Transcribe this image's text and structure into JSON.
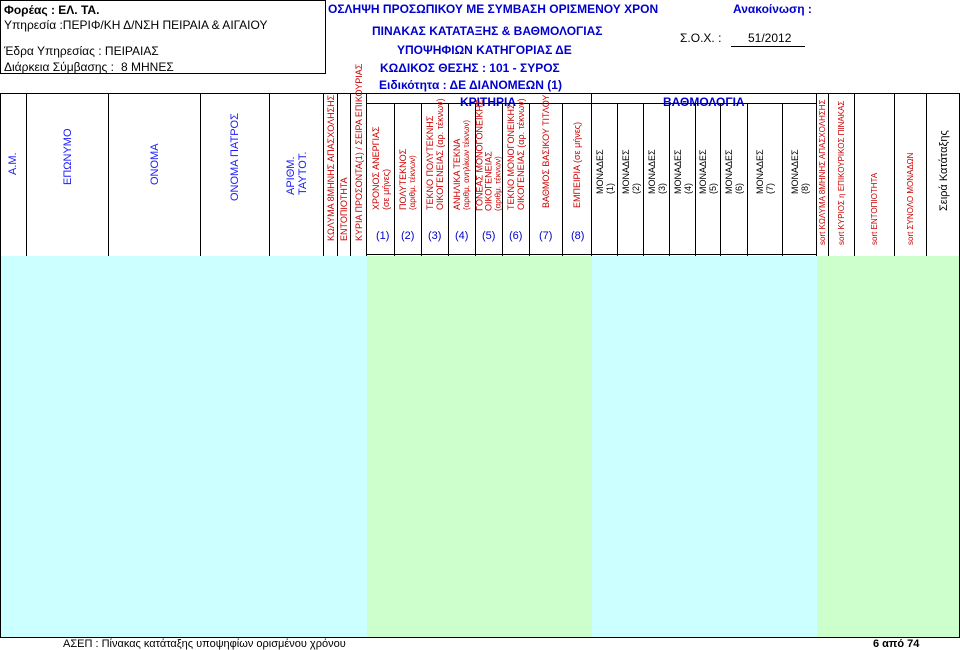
{
  "header": {
    "agency_line": "Φορέας : ΕΛ. ΤΑ.",
    "service_line": "Υπηρεσία :ΠΕΡΙΦ/ΚΗ Δ/ΝΣΗ ΠΕΙΡΑΙΑ & ΑΙΓΑΙΟΥ",
    "seat_line": "Έδρα Υπηρεσίας : ΠΕΙΡΑΙΑΣ",
    "duration_label": "Διάρκεια Σύμβασης :",
    "duration_value": "8 ΜΗΝΕΣ",
    "title_line1": "ΟΣΛΗΨΗ ΠΡΟΣΩΠΙΚΟΥ ΜΕ ΣΥΜΒΑΣΗ ΟΡΙΣΜΕΝΟΥ ΧΡΟΝ",
    "title_line2": "ΠΙΝΑΚΑΣ ΚΑΤΑΤΑΞΗΣ & ΒΑΘΜΟΛΟΓΙΑΣ",
    "title_line3": "ΥΠΟΨΗΦΙΩΝ ΚΑΤΗΓΟΡΙΑΣ ΔΕ",
    "title_line4": "ΚΩΔΙΚΟΣ ΘΕΣΗΣ : 101 - ΣΥΡΟΣ",
    "title_line5": "Ειδικότητα : ΔΕ ΔΙΑΝΟΜΕΩΝ (1)",
    "announcement_label": "Ανακοίνωση :",
    "sox_label": "Σ.Ο.Χ. :",
    "sox_value": "51/2012",
    "criteria_label": "ΚΡΙΤΗΡΙΑ",
    "scoring_label": "ΒΑΘΜΟΛΟΓΙΑ"
  },
  "columns": {
    "am": "Α.Μ.",
    "surname": "ΕΠΩΝΥΜΟ",
    "name": "ΟΝΟΜΑ",
    "father": "ΟΝΟΜΑ ΠΑΤΡΟΣ",
    "id1": "ΑΡΙΘΜ.",
    "id2": "ΤΑΥΤΟΤ.",
    "block": "ΚΩΛΥΜΑ 8ΜΗΝΗΣ ΑΠΑΣΧΟΛΗΣΗΣ",
    "locality": "ΕΝΤΟΠΙΟΤΗΤΑ",
    "main_qual": "ΚΥΡΙΑ ΠΡΟΣΟΝΤΑ(1) / ΣΕΙΡΑ ΕΠΙΚΟΥΡΙΑΣ",
    "c1a": "ΧΡΟΝΟΣ ΑΝΕΡΓΙΑΣ",
    "c1b": "(σε μήνες)",
    "c2a": "ΠΟΛΥΤΕΚΝΟΣ",
    "c2b": "(αριθμ. τέκνων)",
    "c3a": "ΤΕΚΝΟ ΠΟΛΥΤΕΚΝΗΣ",
    "c3b": "ΟΙΚΟΓΕΝΕΙΑΣ  (αρ. τέκνων)",
    "c4a": "ΑΝΗΛΙΚΑ ΤΕΚΝΑ",
    "c4b": "(αριθμ. ανηλίκων τέκνων)",
    "c5a": "ΓΟΝΕΑΣ ΜΟΝΟΓΟΝΕΙΚΗΣ",
    "c5b": "ΟΙΚΟΓΕΝΕΙΑΣ",
    "c5c": "(αριθμ. τέκνων)",
    "c6a": "ΤΕΚΝΟ ΜΟΝΟΓΟΝΕΙΚΗΣ",
    "c6b": "ΟΙΚΟΓΕΝΕΙΑΣ  (αρ. τέκνων)",
    "c7": "ΒΑΘΜΟΣ ΒΑΣΙΚΟΥ ΤΙΤΛΟΥ",
    "c8": "ΕΜΠΕΙΡΙΑ (σε μήνες)",
    "n1": "(1)",
    "n2": "(2)",
    "n3": "(3)",
    "n4": "(4)",
    "n5": "(5)",
    "n6": "(6)",
    "n7": "(7)",
    "n8": "(8)",
    "units": "ΜΟΝΑΔΕΣ",
    "sort_block": "sort ΚΩΛΥΜΑ 8ΜΗΝΗΣ ΑΠΑΣΧΟΛΗΣΗΣ",
    "sort_main": "sort ΚΥΡΙΟΣ η ΕΠΙΚΟΥΡΙΚΟΣ ΠΙΝΑΚΑΣ",
    "sort_local": "sort ΕΝΤΟΠΙΟΤΗΤΑ",
    "sort_total": "sort ΣΥΝΟΛΟ ΜΟΝΑΔΩΝ",
    "order": "Σειρά Κατάταξης"
  },
  "footer": {
    "left": "ΑΣΕΠ : Πίνακας κατάταξης  υποψηφίων ορισμένου χρόνου",
    "page": "6  από 74"
  },
  "colors": {
    "light_cyan": "#ccffff",
    "light_green": "#ccffcc",
    "blue_text": "#0000cc"
  }
}
